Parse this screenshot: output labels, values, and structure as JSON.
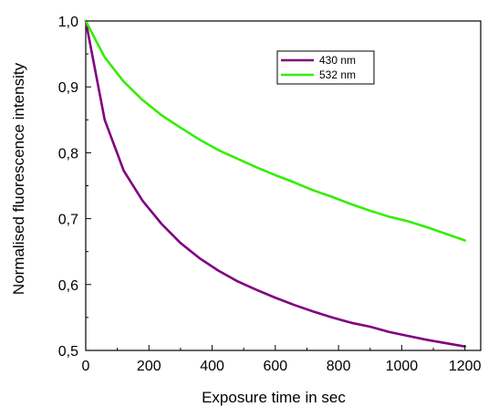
{
  "chart_data": {
    "type": "line",
    "title": "",
    "xlabel": "Exposure time in sec",
    "ylabel": "Normalised fluorescence intensity",
    "xlim": [
      0,
      1250
    ],
    "ylim": [
      0.5,
      1.0
    ],
    "x_ticks": [
      {
        "value": 0,
        "label": "0"
      },
      {
        "value": 200,
        "label": "200"
      },
      {
        "value": 400,
        "label": "400"
      },
      {
        "value": 600,
        "label": "600"
      },
      {
        "value": 800,
        "label": "800"
      },
      {
        "value": 1000,
        "label": "1000"
      },
      {
        "value": 1200,
        "label": "1200"
      }
    ],
    "y_ticks": [
      {
        "value": 0.5,
        "label": "0,5"
      },
      {
        "value": 0.6,
        "label": "0,6"
      },
      {
        "value": 0.7,
        "label": "0,7"
      },
      {
        "value": 0.8,
        "label": "0,8"
      },
      {
        "value": 0.9,
        "label": "0,9"
      },
      {
        "value": 1.0,
        "label": "1,0"
      }
    ],
    "grid": false,
    "legend_position": "top-right",
    "series": [
      {
        "name": "430 nm",
        "color": "#800080",
        "points": [
          [
            0,
            1.0
          ],
          [
            60,
            0.85
          ],
          [
            120,
            0.773
          ],
          [
            180,
            0.727
          ],
          [
            240,
            0.692
          ],
          [
            300,
            0.663
          ],
          [
            360,
            0.64
          ],
          [
            420,
            0.621
          ],
          [
            480,
            0.605
          ],
          [
            540,
            0.592
          ],
          [
            600,
            0.58
          ],
          [
            660,
            0.569
          ],
          [
            720,
            0.559
          ],
          [
            780,
            0.55
          ],
          [
            840,
            0.542
          ],
          [
            900,
            0.536
          ],
          [
            960,
            0.528
          ],
          [
            1020,
            0.522
          ],
          [
            1080,
            0.516
          ],
          [
            1140,
            0.511
          ],
          [
            1200,
            0.506
          ]
        ]
      },
      {
        "name": "532 nm",
        "color": "#33ee00",
        "points": [
          [
            0,
            1.0
          ],
          [
            60,
            0.945
          ],
          [
            120,
            0.908
          ],
          [
            180,
            0.88
          ],
          [
            240,
            0.857
          ],
          [
            300,
            0.838
          ],
          [
            360,
            0.82
          ],
          [
            420,
            0.804
          ],
          [
            480,
            0.791
          ],
          [
            540,
            0.778
          ],
          [
            600,
            0.766
          ],
          [
            660,
            0.755
          ],
          [
            720,
            0.743
          ],
          [
            780,
            0.733
          ],
          [
            840,
            0.722
          ],
          [
            900,
            0.712
          ],
          [
            960,
            0.703
          ],
          [
            1020,
            0.696
          ],
          [
            1080,
            0.687
          ],
          [
            1140,
            0.677
          ],
          [
            1200,
            0.667
          ]
        ]
      }
    ]
  }
}
